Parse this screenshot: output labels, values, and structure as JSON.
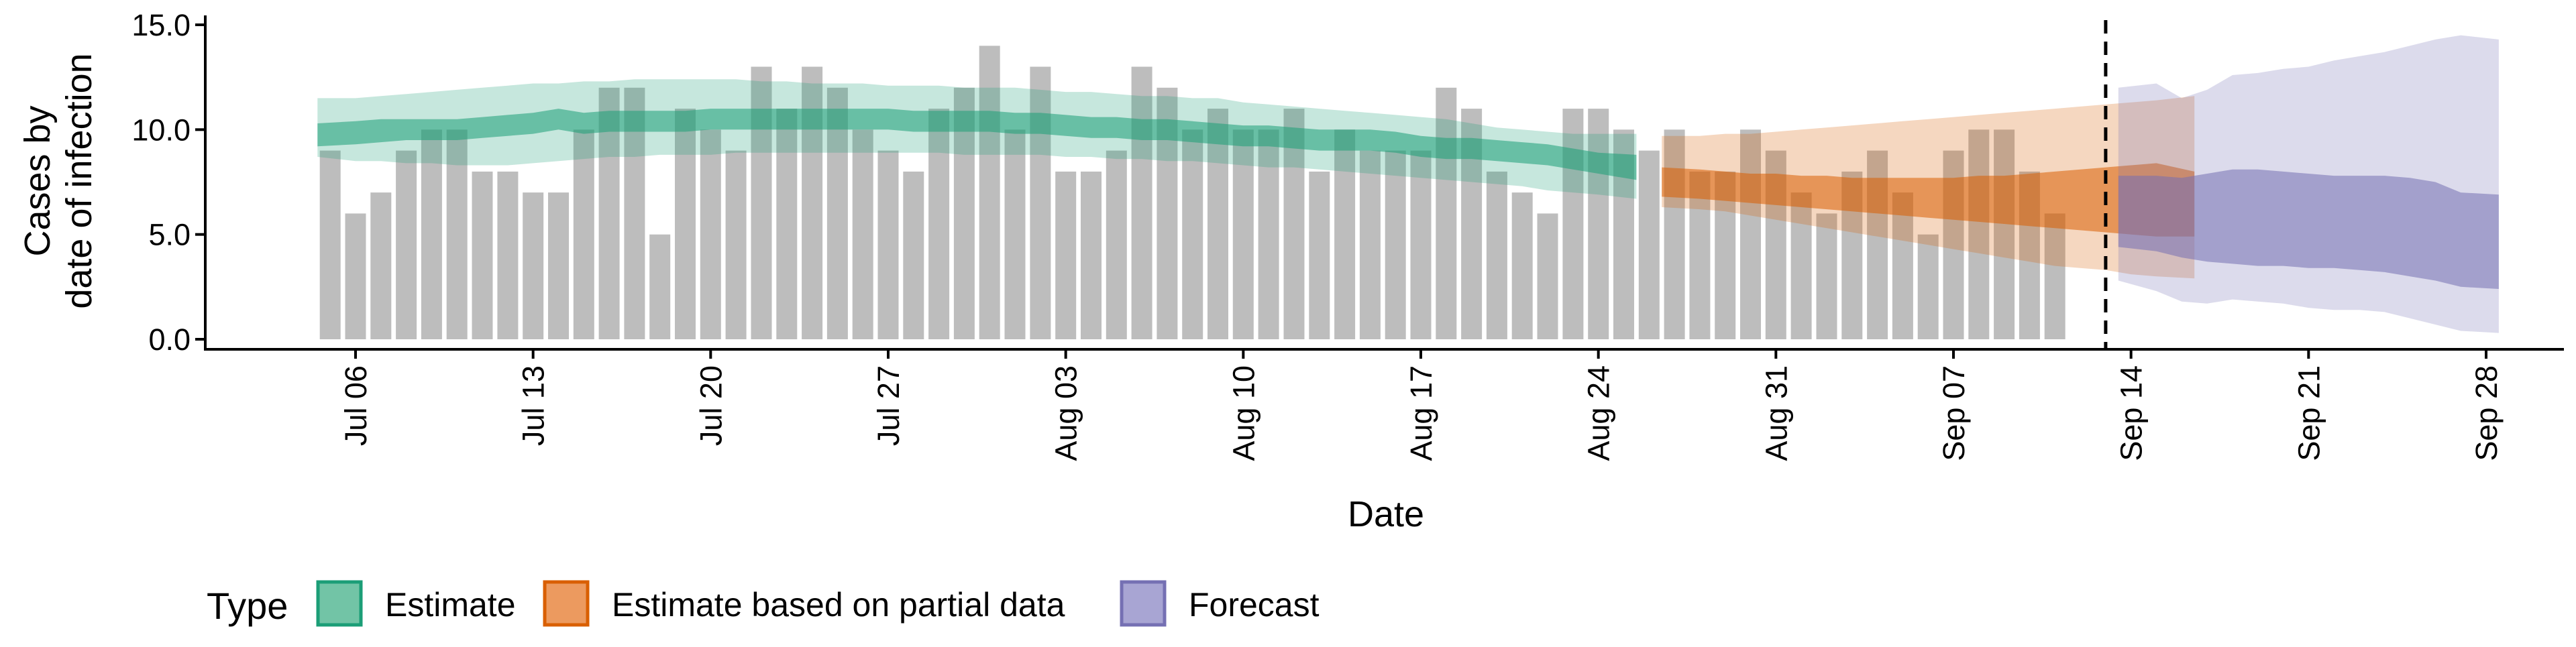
{
  "chart_data": {
    "type": "bar",
    "xlabel": "Date",
    "ylabel_lines": [
      "Cases by",
      "date of infection"
    ],
    "x_start": "Jul 05",
    "x_ticks": [
      "Jul 06",
      "Jul 13",
      "Jul 20",
      "Jul 27",
      "Aug 03",
      "Aug 10",
      "Aug 17",
      "Aug 24",
      "Aug 31",
      "Sep 07",
      "Sep 14",
      "Sep 21",
      "Sep 28"
    ],
    "x_tick_dates": [
      "2020-07-06",
      "2020-07-13",
      "2020-07-20",
      "2020-07-27",
      "2020-08-03",
      "2020-08-10",
      "2020-08-17",
      "2020-08-24",
      "2020-08-31",
      "2020-09-07",
      "2020-09-14",
      "2020-09-21",
      "2020-09-28"
    ],
    "y_ticks": [
      "0.0",
      "5.0",
      "10.0",
      "15.0"
    ],
    "y_tick_values": [
      0,
      5,
      10,
      15
    ],
    "ylim": [
      -0.3,
      15.2
    ],
    "grid": false,
    "vline_date": "2020-09-13",
    "bars": {
      "start_date": "2020-07-05",
      "values": [
        9,
        6,
        7,
        9,
        10,
        10,
        8,
        8,
        7,
        7,
        10,
        12,
        12,
        5,
        11,
        10,
        9,
        13,
        11,
        13,
        12,
        10,
        9,
        8,
        11,
        12,
        14,
        10,
        13,
        8,
        8,
        9,
        13,
        12,
        10,
        11,
        10,
        10,
        11,
        8,
        10,
        9,
        9,
        9,
        12,
        11,
        8,
        7,
        6,
        11,
        11,
        10,
        9,
        10,
        8,
        8,
        10,
        9,
        7,
        6,
        8,
        9,
        7,
        5,
        9,
        10,
        10,
        8,
        6
      ]
    },
    "series": [
      {
        "name": "Estimate",
        "start_date": "2020-07-05",
        "median_lo": [
          9.2,
          9.3,
          9.4,
          9.5,
          9.5,
          9.5,
          9.6,
          9.7,
          9.8,
          10.0,
          9.8,
          9.9,
          9.9,
          9.9,
          9.9,
          10.0,
          10.0,
          10.0,
          10.0,
          10.0,
          10.0,
          10.0,
          10.0,
          9.9,
          9.9,
          9.9,
          9.9,
          9.8,
          9.8,
          9.7,
          9.6,
          9.6,
          9.5,
          9.5,
          9.4,
          9.3,
          9.2,
          9.2,
          9.1,
          9.0,
          9.0,
          9.0,
          8.9,
          8.7,
          8.6,
          8.6,
          8.5,
          8.4,
          8.3,
          8.1,
          7.9,
          7.6
        ],
        "median_hi": [
          10.3,
          10.4,
          10.5,
          10.5,
          10.5,
          10.5,
          10.6,
          10.7,
          10.8,
          11.0,
          10.8,
          10.9,
          10.9,
          10.9,
          10.9,
          11.0,
          11.0,
          11.0,
          11.0,
          11.0,
          11.0,
          11.0,
          11.0,
          10.9,
          10.9,
          10.9,
          10.9,
          10.8,
          10.8,
          10.7,
          10.6,
          10.6,
          10.5,
          10.5,
          10.4,
          10.3,
          10.2,
          10.2,
          10.1,
          10.0,
          10.0,
          10.0,
          9.9,
          9.7,
          9.6,
          9.6,
          9.5,
          9.4,
          9.3,
          9.1,
          8.9,
          8.8
        ],
        "outer_lo": [
          8.7,
          8.5,
          8.5,
          8.4,
          8.4,
          8.3,
          8.3,
          8.3,
          8.4,
          8.5,
          8.6,
          8.7,
          8.7,
          8.8,
          8.8,
          8.8,
          8.9,
          8.9,
          8.9,
          8.9,
          8.9,
          8.9,
          8.9,
          8.9,
          8.9,
          8.8,
          8.8,
          8.8,
          8.8,
          8.7,
          8.7,
          8.6,
          8.6,
          8.5,
          8.5,
          8.4,
          8.3,
          8.2,
          8.2,
          8.1,
          8.0,
          7.9,
          7.8,
          7.7,
          7.6,
          7.5,
          7.4,
          7.3,
          7.1,
          7.0,
          6.9,
          6.7
        ],
        "outer_hi": [
          11.5,
          11.5,
          11.6,
          11.7,
          11.8,
          11.9,
          12.0,
          12.1,
          12.2,
          12.2,
          12.3,
          12.3,
          12.4,
          12.4,
          12.4,
          12.4,
          12.4,
          12.3,
          12.3,
          12.2,
          12.2,
          12.2,
          12.1,
          12.1,
          12.1,
          12.0,
          12.0,
          12.0,
          11.9,
          11.8,
          11.8,
          11.7,
          11.6,
          11.6,
          11.5,
          11.5,
          11.3,
          11.2,
          11.1,
          11.0,
          10.9,
          10.8,
          10.7,
          10.6,
          10.5,
          10.3,
          10.1,
          10.0,
          9.9,
          9.8,
          9.8,
          9.8
        ],
        "color_inner": "#1b9e77",
        "color_outer": "#1b9e77",
        "legend_fill": "#72c4a6",
        "legend_stroke": "#1b9e77"
      },
      {
        "name": "Estimate based on partial data",
        "start_date": "2020-08-27",
        "median_lo": [
          6.8,
          6.7,
          6.6,
          6.5,
          6.4,
          6.3,
          6.2,
          6.1,
          6.0,
          5.9,
          5.8,
          5.7,
          5.6,
          5.5,
          5.4,
          5.3,
          5.2,
          5.1,
          5.0,
          4.9,
          4.9
        ],
        "median_hi": [
          8.2,
          8.1,
          8.0,
          7.9,
          7.9,
          7.8,
          7.8,
          7.7,
          7.7,
          7.7,
          7.7,
          7.7,
          7.8,
          7.8,
          7.9,
          8.0,
          8.1,
          8.2,
          8.3,
          8.4,
          8.0
        ],
        "outer_lo": [
          6.3,
          6.2,
          6.1,
          5.9,
          5.7,
          5.5,
          5.3,
          5.1,
          4.9,
          4.7,
          4.5,
          4.3,
          4.1,
          3.9,
          3.7,
          3.5,
          3.4,
          3.3,
          3.1,
          3.0,
          2.9
        ],
        "outer_hi": [
          9.7,
          9.7,
          9.8,
          9.8,
          9.9,
          10.0,
          10.1,
          10.2,
          10.3,
          10.4,
          10.5,
          10.6,
          10.7,
          10.8,
          10.9,
          11.0,
          11.1,
          11.2,
          11.3,
          11.4,
          11.6
        ],
        "color_inner": "#d95f02",
        "color_outer": "#d95f02",
        "legend_fill": "#ec9a5f",
        "legend_stroke": "#d95f02"
      },
      {
        "name": "Forecast",
        "start_date": "2020-09-14",
        "median_lo": [
          4.4,
          4.2,
          3.9,
          3.7,
          3.6,
          3.5,
          3.5,
          3.4,
          3.4,
          3.3,
          3.2,
          3.0,
          2.8,
          2.5,
          2.4
        ],
        "median_hi": [
          7.8,
          7.8,
          7.7,
          7.9,
          8.1,
          8.1,
          8.0,
          7.9,
          7.8,
          7.8,
          7.8,
          7.7,
          7.5,
          7.0,
          6.9
        ],
        "outer_lo": [
          2.8,
          2.3,
          1.8,
          1.7,
          1.9,
          1.8,
          1.7,
          1.5,
          1.4,
          1.4,
          1.3,
          1.0,
          0.7,
          0.4,
          0.3
        ],
        "outer_hi": [
          12.0,
          12.2,
          11.5,
          11.9,
          12.6,
          12.7,
          12.9,
          13.0,
          13.3,
          13.5,
          13.7,
          14.0,
          14.3,
          14.5,
          14.3
        ],
        "color_inner": "#7570b3",
        "color_outer": "#7570b3",
        "legend_fill": "#a8a5d3",
        "legend_stroke": "#7570b3"
      }
    ],
    "bar_color": "#bdbdbd",
    "legend": {
      "title": "Type",
      "position": "bottom-left",
      "items": [
        "Estimate",
        "Estimate based on partial data",
        "Forecast"
      ]
    }
  }
}
